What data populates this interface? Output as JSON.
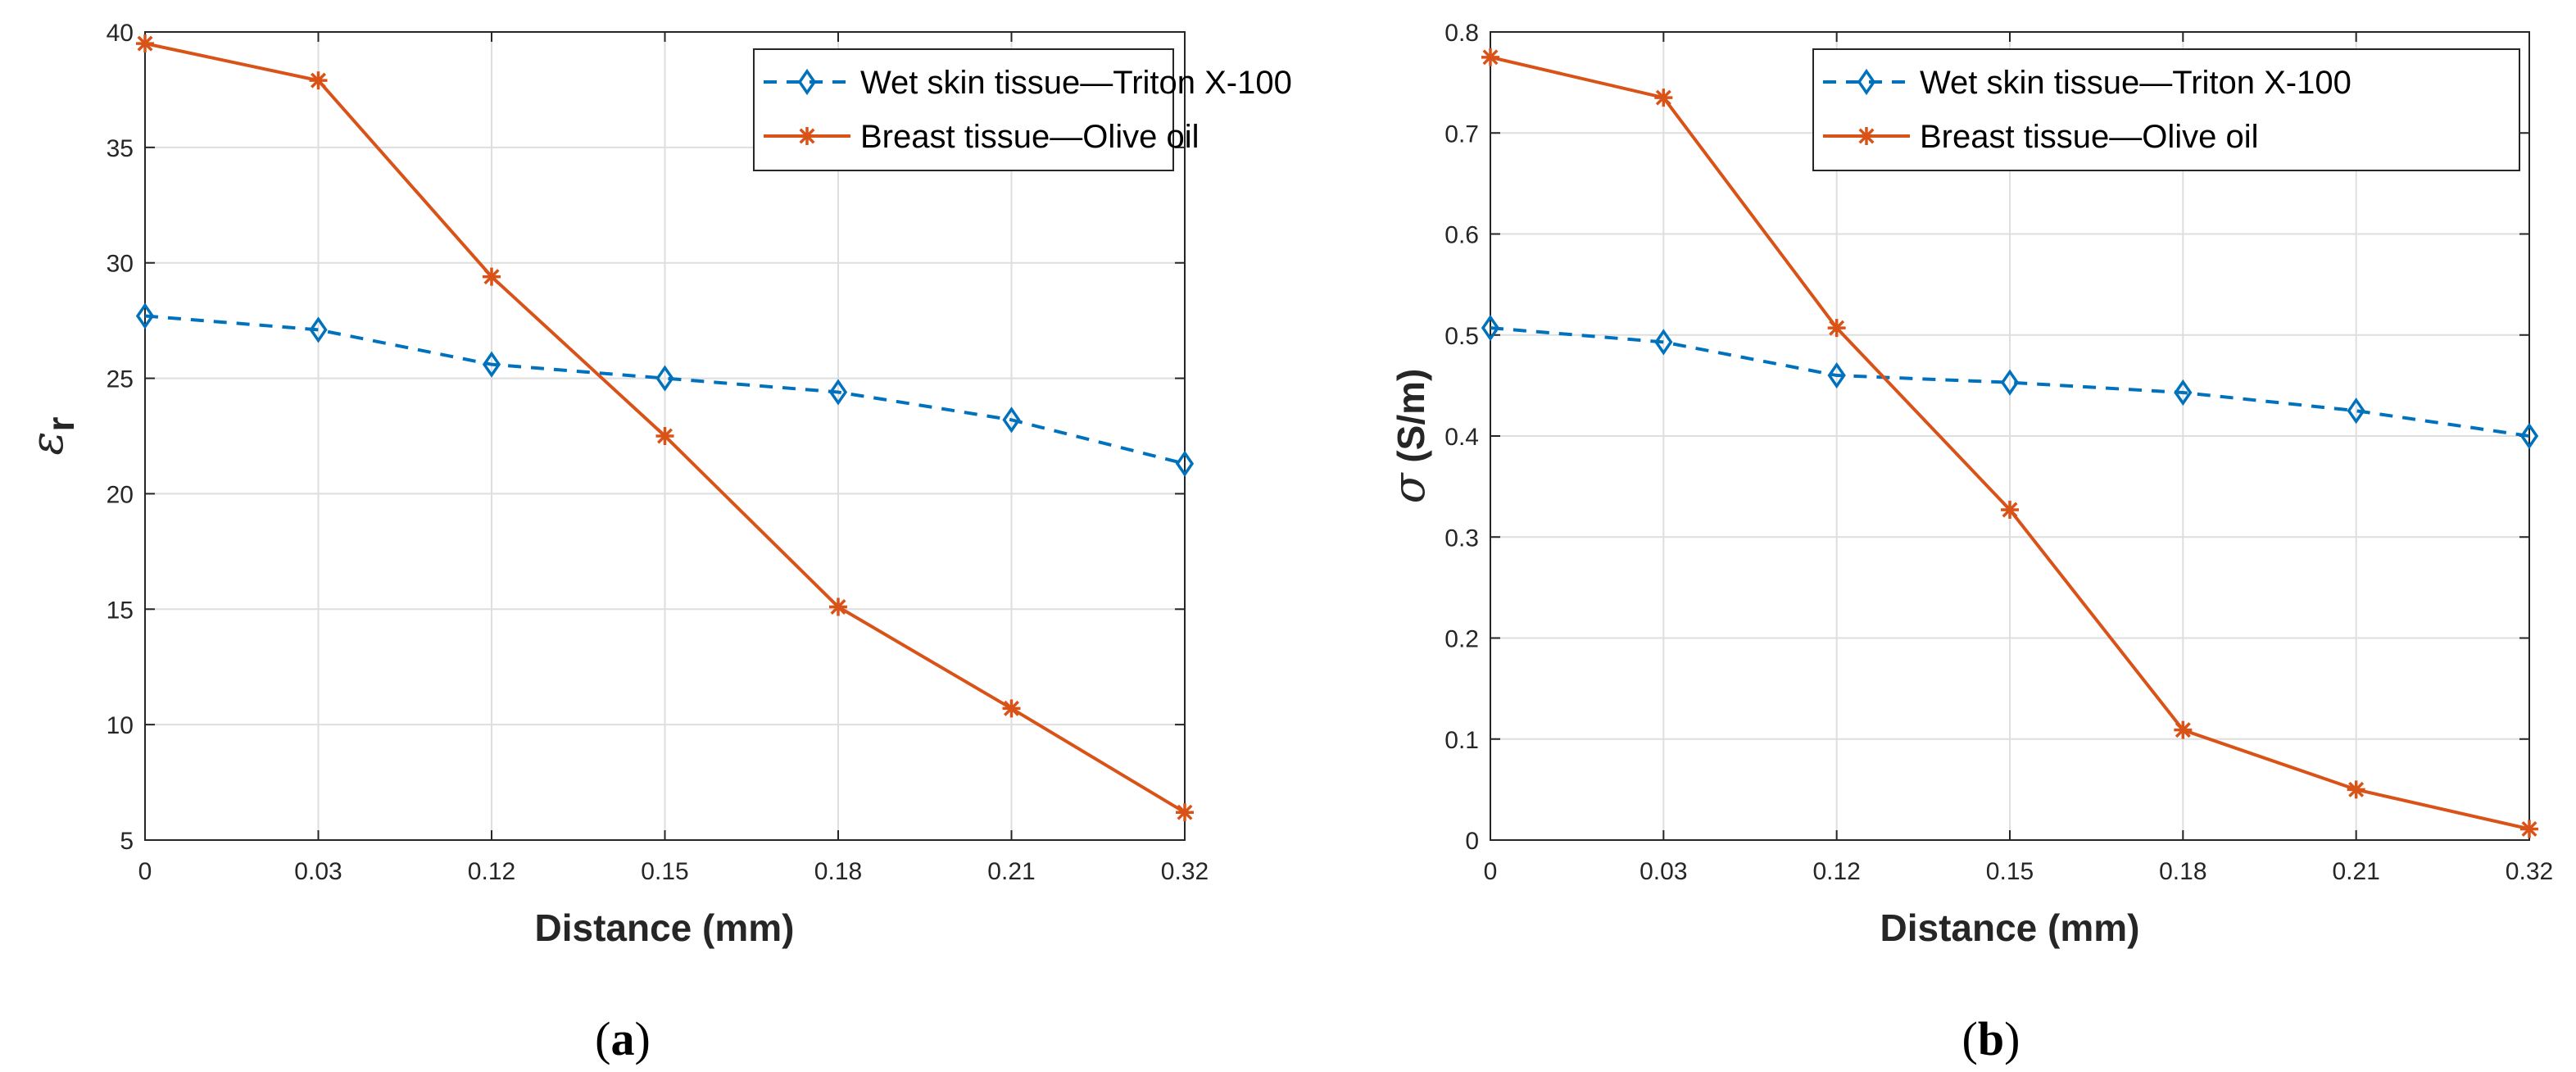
{
  "colors": {
    "wet": "#0072BD",
    "breast": "#D95319",
    "grid": "#dedede",
    "axis": "#262626"
  },
  "chart_data": [
    {
      "type": "line",
      "panel": "a",
      "caption": {
        "open": "(",
        "letter": "a",
        "close": ")"
      },
      "categories": [
        "0",
        "0.03",
        "0.12",
        "0.15",
        "0.18",
        "0.21",
        "0.32"
      ],
      "xlabel": "Distance  (mm)",
      "ylabel": {
        "main": "ε",
        "sub": "r"
      },
      "ylim": [
        5,
        40
      ],
      "yticks": [
        5,
        10,
        15,
        20,
        25,
        30,
        35,
        40
      ],
      "grid": true,
      "legend": "top-right",
      "series": [
        {
          "name": "Wet skin tissue—Triton X-100",
          "style": "dashed",
          "marker": "diamond",
          "values": [
            27.7,
            27.1,
            25.6,
            25.0,
            24.4,
            23.2,
            21.3
          ]
        },
        {
          "name": "Breast tissue—Olive oil",
          "style": "solid",
          "marker": "asterisk",
          "values": [
            39.5,
            37.9,
            29.4,
            22.5,
            15.1,
            10.7,
            6.2
          ]
        }
      ]
    },
    {
      "type": "line",
      "panel": "b",
      "caption": {
        "open": "(",
        "letter": "b",
        "close": ")"
      },
      "categories": [
        "0",
        "0.03",
        "0.12",
        "0.15",
        "0.18",
        "0.21",
        "0.32"
      ],
      "xlabel": "Distance  (mm)",
      "ylabel": {
        "main": "σ",
        "sub": " (S/m)"
      },
      "ylim": [
        0,
        0.8
      ],
      "yticks": [
        0,
        0.1,
        0.2,
        0.3,
        0.4,
        0.5,
        0.6,
        0.7,
        0.8
      ],
      "grid": true,
      "legend": "top-right",
      "series": [
        {
          "name": "Wet skin tissue—Triton X-100",
          "style": "dashed",
          "marker": "diamond",
          "values": [
            0.507,
            0.493,
            0.46,
            0.453,
            0.443,
            0.425,
            0.4
          ]
        },
        {
          "name": "Breast tissue—Olive oil",
          "style": "solid",
          "marker": "asterisk",
          "values": [
            0.775,
            0.735,
            0.507,
            0.327,
            0.109,
            0.05,
            0.011
          ]
        }
      ]
    }
  ]
}
